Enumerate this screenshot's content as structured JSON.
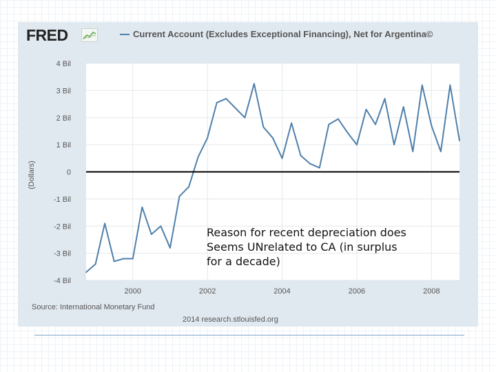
{
  "header": {
    "logo_text": "FRED",
    "title": "Current Account (Excludes Exceptional Financing), Net for Argentina©"
  },
  "footer": {
    "source": "Source: International Monetary Fund",
    "credit": "2014 research.stlouisfed.org"
  },
  "annotation": {
    "line1": "Reason for recent depreciation does",
    "line2": "Seems UNrelated to CA (in surplus",
    "line3": "for a decade)"
  },
  "colors": {
    "series": "#4e7fab",
    "zero_line": "#000000",
    "plot_bg": "#ffffff",
    "panel_bg": "#e1e9f0"
  },
  "chart_data": {
    "type": "line",
    "title": "Current Account (Excludes Exceptional Financing), Net for Argentina©",
    "xlabel": "",
    "ylabel": "(Dollars)",
    "xlim": [
      1998.75,
      2008.75
    ],
    "ylim": [
      -4,
      4
    ],
    "x_ticks": [
      2000,
      2002,
      2004,
      2006,
      2008
    ],
    "x_tick_labels": [
      "2000",
      "2002",
      "2004",
      "2006",
      "2008"
    ],
    "y_ticks": [
      -4,
      -3,
      -2,
      -1,
      0,
      1,
      2,
      3,
      4
    ],
    "y_tick_labels": [
      "-4 Bil",
      "-3 Bil",
      "-2 Bil",
      "-1 Bil",
      "0",
      "1 Bil",
      "2 Bil",
      "3 Bil",
      "4 Bil"
    ],
    "grid": true,
    "legend": "top-left",
    "series": [
      {
        "name": "Current Account (Excludes Exceptional Financing), Net for Argentina©",
        "x": [
          1998.75,
          1999.0,
          1999.25,
          1999.5,
          1999.75,
          2000.0,
          2000.25,
          2000.5,
          2000.75,
          2001.0,
          2001.25,
          2001.5,
          2001.75,
          2002.0,
          2002.25,
          2002.5,
          2002.75,
          2003.0,
          2003.25,
          2003.5,
          2003.75,
          2004.0,
          2004.25,
          2004.5,
          2004.75,
          2005.0,
          2005.25,
          2005.5,
          2005.75,
          2006.0,
          2006.25,
          2006.5,
          2006.75,
          2007.0,
          2007.25,
          2007.5,
          2007.75,
          2008.0,
          2008.25,
          2008.5,
          2008.75
        ],
        "values": [
          -3.7,
          -3.4,
          -1.9,
          -3.3,
          -3.2,
          -3.2,
          -1.3,
          -2.3,
          -2.0,
          -2.8,
          -0.9,
          -0.55,
          0.55,
          1.25,
          2.55,
          2.7,
          2.35,
          2.0,
          3.25,
          1.65,
          1.25,
          0.5,
          1.8,
          0.6,
          0.3,
          0.15,
          1.75,
          1.95,
          1.45,
          1.0,
          2.3,
          1.75,
          2.7,
          1.0,
          2.4,
          0.75,
          3.2,
          1.7,
          0.75,
          3.2,
          1.15
        ]
      }
    ]
  }
}
